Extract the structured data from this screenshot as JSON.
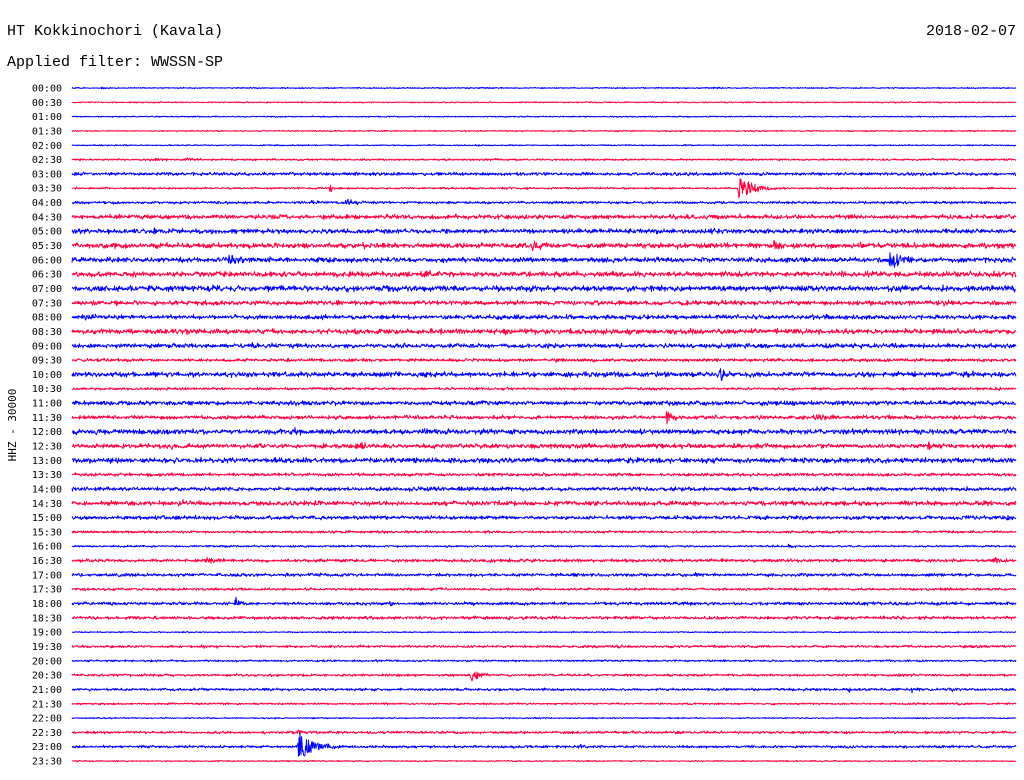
{
  "chart_data": {
    "type": "line",
    "title": "HT Kokkinochori (Kavala)",
    "date": "2018-02-07",
    "subtitle": "Applied filter: WWSSN-SP",
    "ylabel": "HHZ - 30000",
    "x_range": [
      0,
      30
    ],
    "grid": false,
    "colors": [
      "#0000ff",
      "#ff0040"
    ],
    "traces": [
      {
        "label": "00:00",
        "noise": 0.02,
        "events": [
          {
            "minute": 0.9,
            "amplitude": 0.08,
            "duration": 0.8
          },
          {
            "minute": 13.1,
            "amplitude": 0.06,
            "duration": 0.5
          },
          {
            "minute": 20.4,
            "amplitude": 0.06,
            "duration": 0.4
          }
        ]
      },
      {
        "label": "00:30",
        "noise": 0.02,
        "events": [
          {
            "minute": 3.7,
            "amplitude": 0.06,
            "duration": 0.3
          }
        ]
      },
      {
        "label": "01:00",
        "noise": 0.02,
        "events": []
      },
      {
        "label": "01:30",
        "noise": 0.02,
        "events": [
          {
            "minute": 19.3,
            "amplitude": 0.05,
            "duration": 0.4
          },
          {
            "minute": 28.5,
            "amplitude": 0.06,
            "duration": 0.8
          }
        ]
      },
      {
        "label": "02:00",
        "noise": 0.02,
        "events": [
          {
            "minute": 19.5,
            "amplitude": 0.06,
            "duration": 0.3
          }
        ]
      },
      {
        "label": "02:30",
        "noise": 0.03,
        "events": [
          {
            "minute": 2.5,
            "amplitude": 0.12,
            "duration": 1.2
          },
          {
            "minute": 3.6,
            "amplitude": 0.14,
            "duration": 1.0
          },
          {
            "minute": 29.2,
            "amplitude": 0.06,
            "duration": 0.4
          }
        ]
      },
      {
        "label": "03:00",
        "noise": 0.05,
        "events": [
          {
            "minute": 26.0,
            "amplitude": 0.1,
            "duration": 0.8
          }
        ]
      },
      {
        "label": "03:30",
        "noise": 0.03,
        "events": [
          {
            "minute": 8.2,
            "amplitude": 0.3,
            "duration": 0.3
          },
          {
            "minute": 21.2,
            "amplitude": 0.85,
            "duration": 1.3
          }
        ]
      },
      {
        "label": "04:00",
        "noise": 0.04,
        "events": [
          {
            "minute": 7.6,
            "amplitude": 0.1,
            "duration": 1.0
          },
          {
            "minute": 8.7,
            "amplitude": 0.25,
            "duration": 1.2
          }
        ]
      },
      {
        "label": "04:30",
        "noise": 0.07,
        "events": [
          {
            "minute": 19.0,
            "amplitude": 0.08,
            "duration": 2.0
          }
        ]
      },
      {
        "label": "05:00",
        "noise": 0.07,
        "events": [
          {
            "minute": 2.6,
            "amplitude": 0.15,
            "duration": 0.8
          },
          {
            "minute": 15.5,
            "amplitude": 0.1,
            "duration": 3.0
          },
          {
            "minute": 20.3,
            "amplitude": 0.2,
            "duration": 1.2
          },
          {
            "minute": 27.6,
            "amplitude": 0.15,
            "duration": 1.2
          }
        ]
      },
      {
        "label": "05:30",
        "noise": 0.08,
        "events": [
          {
            "minute": 9.2,
            "amplitude": 0.15,
            "duration": 0.4
          },
          {
            "minute": 14.6,
            "amplitude": 0.3,
            "duration": 1.2
          },
          {
            "minute": 22.3,
            "amplitude": 0.2,
            "duration": 1.0
          }
        ]
      },
      {
        "label": "06:00",
        "noise": 0.08,
        "events": [
          {
            "minute": 5.0,
            "amplitude": 0.35,
            "duration": 1.2
          },
          {
            "minute": 7.9,
            "amplitude": 0.15,
            "duration": 0.6
          },
          {
            "minute": 9.8,
            "amplitude": 0.15,
            "duration": 0.3
          },
          {
            "minute": 16.9,
            "amplitude": 0.15,
            "duration": 0.4
          },
          {
            "minute": 26.0,
            "amplitude": 0.75,
            "duration": 1.0
          }
        ]
      },
      {
        "label": "06:30",
        "noise": 0.08,
        "events": [
          {
            "minute": 4.7,
            "amplitude": 0.12,
            "duration": 0.3
          },
          {
            "minute": 11.1,
            "amplitude": 0.3,
            "duration": 1.3
          },
          {
            "minute": 29.3,
            "amplitude": 0.15,
            "duration": 1.0
          }
        ]
      },
      {
        "label": "07:00",
        "noise": 0.09,
        "events": [
          {
            "minute": 21.4,
            "amplitude": 0.15,
            "duration": 0.5
          },
          {
            "minute": 29.2,
            "amplitude": 0.12,
            "duration": 0.5
          }
        ]
      },
      {
        "label": "07:30",
        "noise": 0.07,
        "events": [
          {
            "minute": 1.4,
            "amplitude": 0.22,
            "duration": 0.5
          },
          {
            "minute": 27.7,
            "amplitude": 0.15,
            "duration": 0.6
          }
        ]
      },
      {
        "label": "08:00",
        "noise": 0.07,
        "events": [
          {
            "minute": 0.4,
            "amplitude": 0.3,
            "duration": 1.2
          },
          {
            "minute": 7.9,
            "amplitude": 0.12,
            "duration": 0.5
          }
        ]
      },
      {
        "label": "08:30",
        "noise": 0.08,
        "events": [
          {
            "minute": 3.4,
            "amplitude": 0.15,
            "duration": 1.2
          },
          {
            "minute": 13.6,
            "amplitude": 0.2,
            "duration": 1.4
          },
          {
            "minute": 27.4,
            "amplitude": 0.12,
            "duration": 0.5
          }
        ]
      },
      {
        "label": "09:00",
        "noise": 0.07,
        "events": [
          {
            "minute": 5.7,
            "amplitude": 0.15,
            "duration": 1.6
          }
        ]
      },
      {
        "label": "09:30",
        "noise": 0.05,
        "events": [
          {
            "minute": 15.4,
            "amplitude": 0.15,
            "duration": 0.5
          },
          {
            "minute": 23.1,
            "amplitude": 0.12,
            "duration": 0.4
          }
        ]
      },
      {
        "label": "10:00",
        "noise": 0.08,
        "events": [
          {
            "minute": 20.6,
            "amplitude": 0.45,
            "duration": 0.8
          },
          {
            "minute": 28.0,
            "amplitude": 0.12,
            "duration": 3.0
          }
        ]
      },
      {
        "label": "10:30",
        "noise": 0.04,
        "events": []
      },
      {
        "label": "11:00",
        "noise": 0.07,
        "events": [
          {
            "minute": 6.5,
            "amplitude": 0.12,
            "duration": 1.4
          },
          {
            "minute": 21.9,
            "amplitude": 0.12,
            "duration": 1.2
          },
          {
            "minute": 27.7,
            "amplitude": 0.12,
            "duration": 1.0
          }
        ]
      },
      {
        "label": "11:30",
        "noise": 0.06,
        "events": [
          {
            "minute": 12.0,
            "amplitude": 0.15,
            "duration": 0.8
          },
          {
            "minute": 18.9,
            "amplitude": 0.5,
            "duration": 0.5
          },
          {
            "minute": 23.6,
            "amplitude": 0.2,
            "duration": 1.4
          }
        ]
      },
      {
        "label": "12:00",
        "noise": 0.08,
        "events": [
          {
            "minute": 6.9,
            "amplitude": 0.3,
            "duration": 1.0
          },
          {
            "minute": 29.7,
            "amplitude": 0.15,
            "duration": 0.3
          }
        ]
      },
      {
        "label": "12:30",
        "noise": 0.07,
        "events": [
          {
            "minute": 2.8,
            "amplitude": 0.2,
            "duration": 1.8
          },
          {
            "minute": 9.0,
            "amplitude": 0.3,
            "duration": 1.2
          },
          {
            "minute": 15.8,
            "amplitude": 0.15,
            "duration": 0.3
          },
          {
            "minute": 24.4,
            "amplitude": 0.12,
            "duration": 0.5
          },
          {
            "minute": 27.2,
            "amplitude": 0.3,
            "duration": 0.6
          }
        ]
      },
      {
        "label": "13:00",
        "noise": 0.08,
        "events": [
          {
            "minute": 6.4,
            "amplitude": 0.25,
            "duration": 0.4
          },
          {
            "minute": 17.6,
            "amplitude": 0.15,
            "duration": 1.0
          }
        ]
      },
      {
        "label": "13:30",
        "noise": 0.05,
        "events": []
      },
      {
        "label": "14:00",
        "noise": 0.06,
        "events": [
          {
            "minute": 3.0,
            "amplitude": 0.12,
            "duration": 0.4
          },
          {
            "minute": 27.7,
            "amplitude": 0.12,
            "duration": 1.0
          }
        ]
      },
      {
        "label": "14:30",
        "noise": 0.07,
        "events": [
          {
            "minute": 3.4,
            "amplitude": 0.25,
            "duration": 0.4
          },
          {
            "minute": 6.8,
            "amplitude": 0.15,
            "duration": 1.4
          },
          {
            "minute": 18.7,
            "amplitude": 0.15,
            "duration": 0.6
          }
        ]
      },
      {
        "label": "15:00",
        "noise": 0.06,
        "events": [
          {
            "minute": 3.9,
            "amplitude": 0.12,
            "duration": 0.6
          },
          {
            "minute": 29.7,
            "amplitude": 0.2,
            "duration": 0.5
          }
        ]
      },
      {
        "label": "15:30",
        "noise": 0.04,
        "events": [
          {
            "minute": 16.9,
            "amplitude": 0.15,
            "duration": 0.4
          }
        ]
      },
      {
        "label": "16:00",
        "noise": 0.03,
        "events": [
          {
            "minute": 22.8,
            "amplitude": 0.15,
            "duration": 0.6
          }
        ]
      },
      {
        "label": "16:30",
        "noise": 0.05,
        "events": [
          {
            "minute": 4.3,
            "amplitude": 0.25,
            "duration": 0.6
          },
          {
            "minute": 29.3,
            "amplitude": 0.2,
            "duration": 0.8
          }
        ]
      },
      {
        "label": "17:00",
        "noise": 0.05,
        "events": [
          {
            "minute": 0.3,
            "amplitude": 0.15,
            "duration": 0.3
          },
          {
            "minute": 19.8,
            "amplitude": 0.12,
            "duration": 0.4
          }
        ]
      },
      {
        "label": "17:30",
        "noise": 0.04,
        "events": [
          {
            "minute": 2.6,
            "amplitude": 0.15,
            "duration": 0.4
          }
        ]
      },
      {
        "label": "18:00",
        "noise": 0.05,
        "events": [
          {
            "minute": 5.2,
            "amplitude": 0.4,
            "duration": 0.3
          },
          {
            "minute": 9.2,
            "amplitude": 0.1,
            "duration": 0.5
          },
          {
            "minute": 10.1,
            "amplitude": 0.15,
            "duration": 0.5
          }
        ]
      },
      {
        "label": "18:30",
        "noise": 0.05,
        "events": [
          {
            "minute": 26.2,
            "amplitude": 0.2,
            "duration": 0.6
          },
          {
            "minute": 27.7,
            "amplitude": 0.15,
            "duration": 0.6
          }
        ]
      },
      {
        "label": "19:00",
        "noise": 0.02,
        "events": []
      },
      {
        "label": "19:30",
        "noise": 0.04,
        "events": [
          {
            "minute": 4.1,
            "amplitude": 0.12,
            "duration": 1.0
          },
          {
            "minute": 17.3,
            "amplitude": 0.12,
            "duration": 1.2
          }
        ]
      },
      {
        "label": "20:00",
        "noise": 0.03,
        "events": [
          {
            "minute": 9.6,
            "amplitude": 0.1,
            "duration": 0.3
          }
        ]
      },
      {
        "label": "20:30",
        "noise": 0.04,
        "events": [
          {
            "minute": 12.7,
            "amplitude": 0.6,
            "duration": 0.6
          }
        ]
      },
      {
        "label": "21:00",
        "noise": 0.04,
        "events": [
          {
            "minute": 24.7,
            "amplitude": 0.15,
            "duration": 0.3
          },
          {
            "minute": 26.7,
            "amplitude": 0.3,
            "duration": 0.3
          },
          {
            "minute": 27.9,
            "amplitude": 0.12,
            "duration": 0.8
          }
        ]
      },
      {
        "label": "21:30",
        "noise": 0.03,
        "events": [
          {
            "minute": 28.1,
            "amplitude": 0.12,
            "duration": 0.3
          }
        ]
      },
      {
        "label": "22:00",
        "noise": 0.02,
        "events": []
      },
      {
        "label": "22:30",
        "noise": 0.04,
        "events": [
          {
            "minute": 7.2,
            "amplitude": 0.3,
            "duration": 0.3
          }
        ]
      },
      {
        "label": "23:00",
        "noise": 0.04,
        "events": [
          {
            "minute": 2.2,
            "amplitude": 0.08,
            "duration": 0.6
          },
          {
            "minute": 7.2,
            "amplitude": 1.1,
            "duration": 1.4
          },
          {
            "minute": 16.1,
            "amplitude": 0.25,
            "duration": 0.6
          }
        ]
      },
      {
        "label": "23:30",
        "noise": 0.02,
        "events": []
      }
    ]
  }
}
